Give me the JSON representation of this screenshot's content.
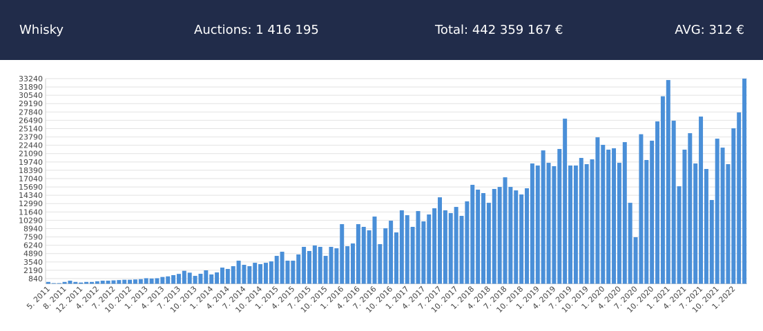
{
  "header": {
    "title": "Whisky",
    "auctions": "Auctions: 1 416 195",
    "total": "Total: 442 359 167 €",
    "avg": "AVG: 312 €"
  },
  "chart_data": {
    "type": "bar",
    "color": "#4a8fd8",
    "grid": true,
    "ylim": [
      0,
      33240
    ],
    "yticks": [
      840,
      2190,
      3540,
      4890,
      6240,
      7590,
      8940,
      10290,
      11640,
      12990,
      14340,
      15690,
      17040,
      18390,
      19740,
      21090,
      22440,
      23790,
      25140,
      26490,
      27840,
      29190,
      30540,
      31890,
      33240
    ],
    "categories": [
      "5. 2011",
      null,
      null,
      "8. 2011",
      null,
      null,
      "12. 2011",
      null,
      null,
      "4. 2012",
      null,
      null,
      "7. 2012",
      null,
      null,
      "10. 2012",
      null,
      null,
      "1. 2013",
      null,
      null,
      "4. 2013",
      null,
      null,
      "7. 2013",
      null,
      null,
      "10. 2013",
      null,
      null,
      "1. 2014",
      null,
      null,
      "4. 2014",
      null,
      null,
      "7. 2014",
      null,
      null,
      "10. 2014",
      null,
      null,
      "1. 2015",
      null,
      null,
      "4. 2015",
      null,
      null,
      "7. 2015",
      null,
      null,
      "10. 2015",
      null,
      null,
      "1. 2016",
      null,
      null,
      "4. 2016",
      null,
      null,
      "7. 2016",
      null,
      null,
      "10. 2016",
      null,
      null,
      "1. 2017",
      null,
      null,
      "4. 2017",
      null,
      null,
      "7. 2017",
      null,
      null,
      "10. 2017",
      null,
      null,
      "1. 2018",
      null,
      null,
      "4. 2018",
      null,
      null,
      "7. 2018",
      null,
      null,
      "10. 2018",
      null,
      null,
      "1. 2019",
      null,
      null,
      "4. 2019",
      null,
      null,
      "7. 2019",
      null,
      null,
      "10. 2019",
      null,
      null,
      "1. 2020",
      null,
      null,
      "4. 2020",
      null,
      null,
      "7. 2020",
      null,
      null,
      "10. 2020",
      null,
      null,
      "1. 2021",
      null,
      null,
      "4. 2021",
      null,
      null,
      "7. 2021",
      null,
      null,
      "10. 2021",
      null,
      null,
      "1. 2022",
      null,
      null
    ],
    "values": [
      300,
      100,
      100,
      300,
      500,
      300,
      200,
      300,
      300,
      400,
      500,
      500,
      550,
      600,
      650,
      650,
      700,
      750,
      900,
      850,
      900,
      1100,
      1200,
      1400,
      1600,
      2100,
      1800,
      1280,
      1620,
      2180,
      1510,
      1840,
      2620,
      2400,
      2850,
      3740,
      3070,
      2850,
      3400,
      3180,
      3400,
      3630,
      4520,
      5190,
      3740,
      3740,
      4750,
      5980,
      5310,
      6200,
      5980,
      4520,
      5980,
      5750,
      9660,
      6090,
      6530,
      9660,
      9220,
      8660,
      10890,
      6420,
      8990,
      10220,
      8320,
      11900,
      11110,
      9220,
      11780,
      10110,
      11230,
      12230,
      14010,
      11900,
      11450,
      12450,
      11000,
      13350,
      16030,
      15250,
      14690,
      13120,
      15360,
      15690,
      17250,
      15690,
      15130,
      14470,
      15470,
      19490,
      19160,
      21610,
      19600,
      19050,
      21840,
      26750,
      19160,
      19160,
      20390,
      19380,
      20160,
      23730,
      22510,
      21730,
      21950,
      19600,
      22950,
      13120,
      7540,
      24230,
      20050,
      23180,
      26310,
      30380,
      33010,
      26420,
      15800,
      21730,
      24400,
      19490,
      27090,
      18600,
      13570,
      23510,
      22060,
      19380,
      25190,
      27760,
      33240
    ]
  }
}
